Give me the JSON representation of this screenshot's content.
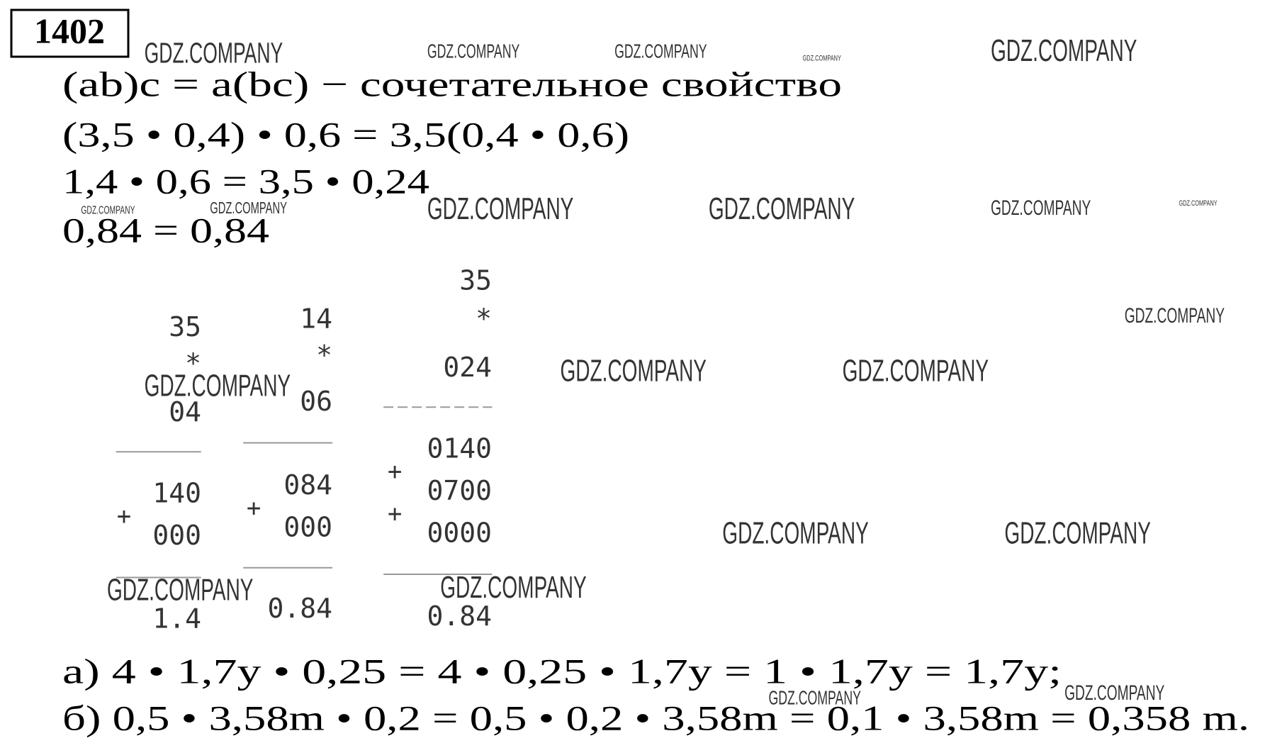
{
  "number": "1402",
  "lines": [
    "(ab)c = a(bc) − сочетательное свойство",
    "(3,5 • 0,4) • 0,6 = 3,5(0,4 • 0,6)",
    "1,4 • 0,6 = 3,5 • 0,24",
    "0,84 = 0,84"
  ],
  "columns": [
    {
      "rows": [
        "35",
        "*",
        "04",
        "140",
        "000",
        "1.4"
      ],
      "plus": [
        "+"
      ]
    },
    {
      "rows": [
        "14",
        "*",
        "06",
        "084",
        "000",
        "0.84"
      ],
      "plus": [
        "+"
      ]
    },
    {
      "rows": [
        "35",
        "*",
        "024",
        "0140",
        "0700",
        "0000",
        "0.84"
      ],
      "plus": [
        "+",
        "+"
      ]
    }
  ],
  "answers": [
    "а) 4 • 1,7y • 0,25 = 4 • 0,25 • 1,7y = 1 • 1,7y = 1,7y;",
    "б) 0,5 • 3,58m • 0,2 = 0,5 • 0,2 • 3,58m = 0,1 • 3,58m = 0,358 m."
  ],
  "watermarks": [
    "GDZ.COMPANY",
    "GDZ.COMPANY",
    "GDZ.COMPANY",
    "GDZ.COMPANY",
    "GDZ.COMPANY",
    "GDZ.COMPANY",
    "GDZ.COMPANY",
    "GDZ.COMPANY",
    "GDZ.COMPANY",
    "GDZ.COMPANY",
    "GDZ.COMPANY",
    "GDZ.COMPANY",
    "GDZ.COMPANY",
    "GDZ.COMPANY",
    "GDZ.COMPANY",
    "GDZ.COMPANY",
    "GDZ.COMPANY",
    "GDZ.COMPANY",
    "GDZ.COMPANY",
    "GDZ.COMPANY",
    "GDZ.COMPANY"
  ]
}
